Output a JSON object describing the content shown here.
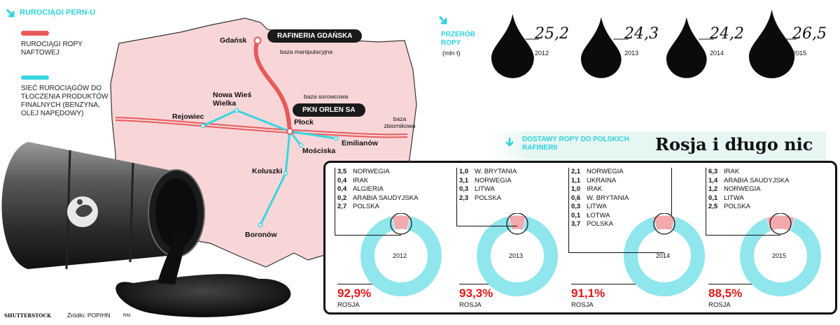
{
  "legend": {
    "title": "RUROCIĄGI PERN-U",
    "crude_label": "RUROCIĄGI ROPY NAFTOWEJ",
    "product_label": "SIEĆ RUROCIĄGÓW DO TŁOCZENIA PRODUKTÓW FINALNYCH (BENZYNA, OLEJ NAPĘDOWY)",
    "crude_color": "#e85a5a",
    "product_color": "#37d6e0"
  },
  "map": {
    "fill_color": "#f8d6d8",
    "pill_gdansk": "RAFINERIA GDAŃSKA",
    "pill_orlen": "PKN ORLEN SA",
    "cities": {
      "gdansk": "Gdańsk",
      "nowa_wies": "Nowa Wieś Wielka",
      "rejowiec": "Rejowiec",
      "plock": "Płock",
      "emilianow": "Emilianów",
      "mosciska": "Mościska",
      "koluszki": "Koluszki",
      "boronow": "Boronów"
    },
    "notes": {
      "baza_manipulacyjna": "baza manipulacyjna",
      "baza_surowcowa": "baza surowcowa",
      "baza_zbiornikowa": "baza zbiornikowa"
    }
  },
  "processing": {
    "title": "PRZERÓB ROPY",
    "unit": "(mln t)",
    "icon": "oil-drop-icon",
    "drops": [
      {
        "value": "25,2",
        "year": "2012"
      },
      {
        "value": "24,3",
        "year": "2013"
      },
      {
        "value": "24,2",
        "year": "2014"
      },
      {
        "value": "26,5",
        "year": "2015"
      }
    ]
  },
  "deliveries": {
    "title": "DOSTAWY ROPY DO POLSKICH RAFINERII",
    "headline": "Rosja i długo nic",
    "russia_label": "ROSJA",
    "ring_color": "#8fe6ec",
    "slice_color": "#f2a9ae",
    "years": [
      {
        "year": "2012",
        "russia_pct": "92,9%",
        "russia_value": 92.9,
        "sources": [
          {
            "value": "3,5",
            "name": "NORWEGIA"
          },
          {
            "value": "0,4",
            "name": "IRAK"
          },
          {
            "value": "0,4",
            "name": "ALGIERIA"
          },
          {
            "value": "0,2",
            "name": "ARABIA SAUDYJSKA"
          },
          {
            "value": "2,7",
            "name": "POLSKA"
          }
        ]
      },
      {
        "year": "2013",
        "russia_pct": "93,3%",
        "russia_value": 93.3,
        "sources": [
          {
            "value": "1,0",
            "name": "W. BRYTANIA"
          },
          {
            "value": "3,1",
            "name": "NORWEGIA"
          },
          {
            "value": "0,3",
            "name": "LITWA"
          },
          {
            "value": "2,3",
            "name": "POLSKA"
          }
        ]
      },
      {
        "year": "2014",
        "russia_pct": "91,1%",
        "russia_value": 91.1,
        "sources": [
          {
            "value": "2,1",
            "name": "NORWEGIA"
          },
          {
            "value": "1,1",
            "name": "UKRAINA"
          },
          {
            "value": "1,0",
            "name": "IRAK"
          },
          {
            "value": "0,6",
            "name": "W. BRYTANIA"
          },
          {
            "value": "0,3",
            "name": "LITWA"
          },
          {
            "value": "0,1",
            "name": "ŁOTWA"
          },
          {
            "value": "3,7",
            "name": "POLSKA"
          }
        ]
      },
      {
        "year": "2015",
        "russia_pct": "88,5%",
        "russia_value": 88.5,
        "sources": [
          {
            "value": "6,3",
            "name": "IRAK"
          },
          {
            "value": "1,4",
            "name": "ARABIA SAUDYJSKA"
          },
          {
            "value": "1,2",
            "name": "NORWEGIA"
          },
          {
            "value": "0,1",
            "name": "LITWA"
          },
          {
            "value": "2,5",
            "name": "POLSKA"
          }
        ]
      }
    ]
  },
  "footer": {
    "photo_credit": "SHUTTERSTOCK",
    "source": "Źródło: POPIHN",
    "author": "RM"
  }
}
